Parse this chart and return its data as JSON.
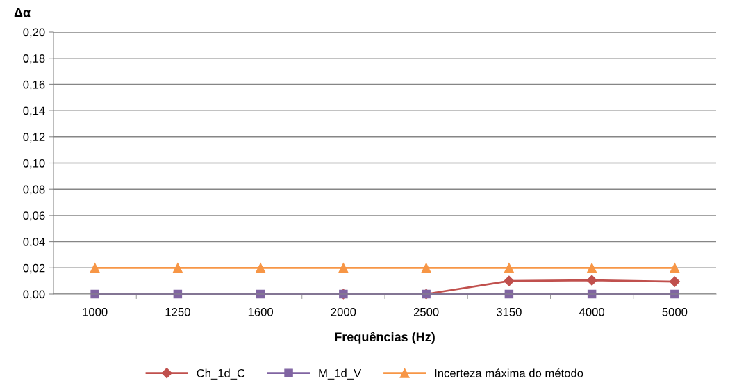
{
  "chart_data": {
    "type": "line",
    "ylabel": "Δα",
    "xlabel": "Frequências (Hz)",
    "categories": [
      "1000",
      "1250",
      "1600",
      "2000",
      "2500",
      "3150",
      "4000",
      "5000"
    ],
    "series": [
      {
        "name": "Ch_1d_C",
        "color": "#c0504d",
        "marker": "diamond",
        "values": [
          null,
          null,
          null,
          0,
          0,
          0.01,
          0.0105,
          0.0095
        ]
      },
      {
        "name": "M_1d_V",
        "color": "#8064a2",
        "marker": "square",
        "values": [
          0,
          0,
          0,
          0,
          0,
          0,
          0,
          0
        ]
      },
      {
        "name": "Incerteza máxima do método",
        "color": "#f79646",
        "marker": "triangle",
        "values": [
          0.02,
          0.02,
          0.02,
          0.02,
          0.02,
          0.02,
          0.02,
          0.02
        ]
      }
    ],
    "ylim": [
      0,
      0.2
    ],
    "yticks": [
      {
        "value": 0,
        "label": "0,00"
      },
      {
        "value": 0.02,
        "label": "0,02"
      },
      {
        "value": 0.04,
        "label": "0,04"
      },
      {
        "value": 0.06,
        "label": "0,06"
      },
      {
        "value": 0.08,
        "label": "0,08"
      },
      {
        "value": 0.1,
        "label": "0,10"
      },
      {
        "value": 0.12,
        "label": "0,12"
      },
      {
        "value": 0.14,
        "label": "0,14"
      },
      {
        "value": 0.16,
        "label": "0,16"
      },
      {
        "value": 0.18,
        "label": "0,18"
      },
      {
        "value": 0.2,
        "label": "0,20"
      }
    ],
    "grid": "y",
    "legend": "bottom"
  }
}
